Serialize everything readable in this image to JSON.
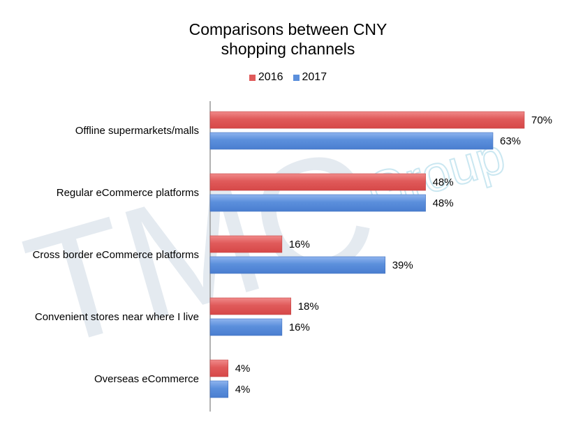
{
  "chart_data": {
    "type": "bar",
    "orientation": "horizontal",
    "title_lines": [
      "Comparisons between CNY",
      "shopping channels"
    ],
    "categories": [
      "Offline supermarkets/malls",
      "Regular eCommerce platforms",
      "Cross border eCommerce platforms",
      "Convenient stores near where I live",
      "Overseas eCommerce"
    ],
    "series": [
      {
        "name": "2016",
        "color": "#e05a5a",
        "values": [
          70,
          48,
          16,
          18,
          4
        ],
        "labels": [
          "70%",
          "48%",
          "16%",
          "18%",
          "4%"
        ]
      },
      {
        "name": "2017",
        "color": "#5b8fdc",
        "values": [
          63,
          48,
          39,
          16,
          4
        ],
        "labels": [
          "63%",
          "48%",
          "39%",
          "16%",
          "4%"
        ]
      }
    ],
    "xlim": [
      0,
      70
    ],
    "legend_position": "top",
    "grid": false,
    "unit": "%"
  },
  "watermark": {
    "main": "TMC",
    "sub": "Group"
  }
}
